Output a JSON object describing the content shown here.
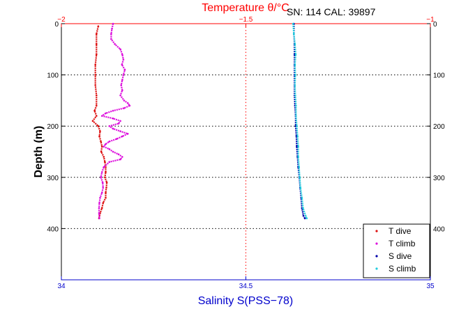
{
  "chart_data": {
    "type": "scatter",
    "title": "Temperature θ/°C",
    "header_note": "SN: 114  CAL: 39897",
    "xlabel_bottom": "Salinity S(PSS−78)",
    "xlabel_top": "Temperature θ/°C",
    "ylabel": "Depth (m)",
    "ylim": [
      0,
      500
    ],
    "y_reversed": true,
    "y_ticks": [
      0,
      100,
      200,
      300,
      400
    ],
    "y_tick_labels": [
      "0",
      "100",
      "200",
      "300",
      "400"
    ],
    "x_bottom_lim": [
      34,
      35
    ],
    "x_bottom_ticks": [
      34,
      34.5,
      35
    ],
    "x_bottom_tick_labels": [
      "34",
      "34.5",
      "35"
    ],
    "x_top_lim": [
      -2,
      -1
    ],
    "x_top_ticks": [
      -2,
      -1.5,
      -1
    ],
    "x_top_tick_labels": [
      "−2",
      "−1.5",
      "−1"
    ],
    "grid": "dotted",
    "legend_position": "bottom-right",
    "colors": {
      "temperature_axis": "#ff0000",
      "salinity_axis": "#0000cc",
      "grid": "#000000"
    },
    "series": [
      {
        "name": "T dive",
        "axis": "top",
        "color": "#dd1111",
        "depth": [
          5,
          20,
          40,
          60,
          80,
          100,
          120,
          140,
          160,
          170,
          180,
          190,
          200,
          210,
          220,
          230,
          240,
          250,
          260,
          270,
          280,
          290,
          300,
          310,
          320,
          330,
          340,
          350,
          360,
          370,
          380
        ],
        "values": [
          -1.9,
          -1.905,
          -1.905,
          -1.905,
          -1.908,
          -1.908,
          -1.908,
          -1.905,
          -1.905,
          -1.91,
          -1.905,
          -1.915,
          -1.9,
          -1.895,
          -1.897,
          -1.893,
          -1.89,
          -1.892,
          -1.885,
          -1.882,
          -1.88,
          -1.88,
          -1.882,
          -1.877,
          -1.878,
          -1.88,
          -1.88,
          -1.887,
          -1.89,
          -1.895,
          -1.898
        ]
      },
      {
        "name": "T climb",
        "axis": "top",
        "color": "#dd11dd",
        "depth": [
          0,
          10,
          20,
          30,
          40,
          50,
          60,
          70,
          80,
          90,
          100,
          110,
          120,
          130,
          140,
          150,
          155,
          160,
          165,
          170,
          175,
          180,
          185,
          190,
          195,
          200,
          205,
          210,
          215,
          220,
          225,
          230,
          235,
          240,
          245,
          250,
          255,
          260,
          265,
          270,
          280,
          290,
          300,
          310,
          320,
          330,
          340,
          350,
          360,
          370,
          380
        ],
        "values": [
          -1.86,
          -1.863,
          -1.865,
          -1.865,
          -1.855,
          -1.84,
          -1.835,
          -1.832,
          -1.836,
          -1.828,
          -1.832,
          -1.835,
          -1.838,
          -1.835,
          -1.84,
          -1.83,
          -1.82,
          -1.815,
          -1.83,
          -1.86,
          -1.88,
          -1.89,
          -1.86,
          -1.84,
          -1.845,
          -1.87,
          -1.86,
          -1.84,
          -1.82,
          -1.835,
          -1.85,
          -1.87,
          -1.88,
          -1.885,
          -1.87,
          -1.86,
          -1.845,
          -1.835,
          -1.84,
          -1.87,
          -1.885,
          -1.89,
          -1.893,
          -1.888,
          -1.887,
          -1.89,
          -1.895,
          -1.897,
          -1.898,
          -1.898,
          -1.897
        ]
      },
      {
        "name": "S dive",
        "axis": "bottom",
        "color": "#0000aa",
        "depth": [
          0,
          20,
          40,
          60,
          80,
          100,
          120,
          140,
          160,
          180,
          200,
          220,
          240,
          260,
          280,
          300,
          320,
          340,
          360,
          375,
          380
        ],
        "values": [
          34.63,
          34.63,
          34.632,
          34.632,
          34.632,
          34.632,
          34.632,
          34.632,
          34.633,
          34.635,
          34.635,
          34.637,
          34.638,
          34.64,
          34.642,
          34.645,
          34.647,
          34.65,
          34.652,
          34.656,
          34.66
        ]
      },
      {
        "name": "S climb",
        "axis": "bottom",
        "color": "#22ccdd",
        "depth": [
          0,
          20,
          40,
          60,
          80,
          100,
          120,
          140,
          160,
          180,
          200,
          220,
          240,
          260,
          280,
          300,
          320,
          340,
          360,
          375,
          380
        ],
        "values": [
          34.628,
          34.63,
          34.633,
          34.635,
          34.633,
          34.634,
          34.633,
          34.634,
          34.636,
          34.636,
          34.638,
          34.64,
          34.642,
          34.642,
          34.644,
          34.646,
          34.648,
          34.652,
          34.655,
          34.662,
          34.665
        ]
      }
    ]
  }
}
